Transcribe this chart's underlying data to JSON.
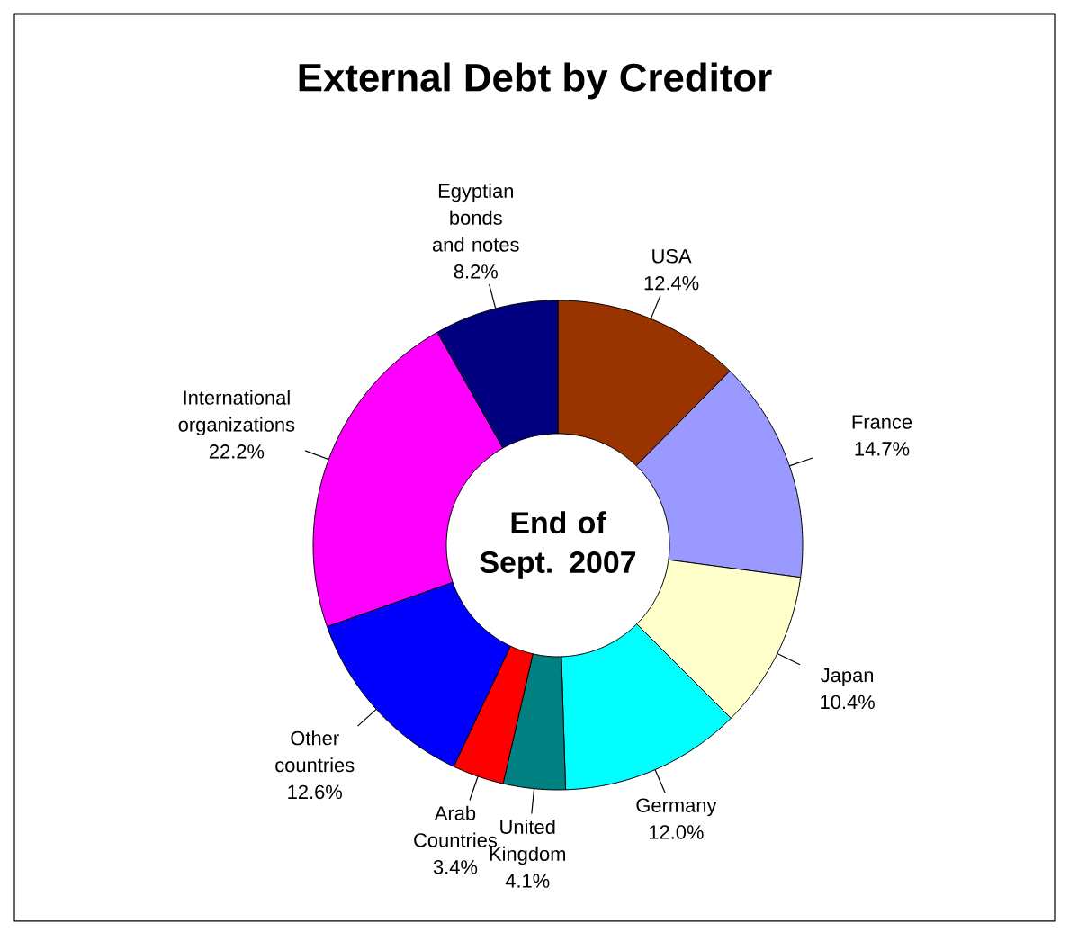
{
  "chart_data": {
    "type": "donut",
    "title": "External Debt by Creditor",
    "categories": [
      "USA",
      "France",
      "Japan",
      "Germany",
      "United Kingdom",
      "Arab Countries",
      "Other countries",
      "International organizations",
      "Egyptian bonds and notes"
    ],
    "values": [
      12.4,
      14.7,
      10.4,
      12.0,
      4.1,
      3.4,
      12.6,
      22.2,
      8.2
    ],
    "value_labels": [
      "12.4%",
      "14.7%",
      "10.4%",
      "12.0%",
      "4.1%",
      "3.4%",
      "12.6%",
      "22.2%",
      "8.2%"
    ],
    "colors": [
      "#993300",
      "#9999ff",
      "#ffffcc",
      "#00ffff",
      "#008080",
      "#ff0000",
      "#0000ff",
      "#ff00ff",
      "#000080"
    ],
    "annotations": [
      "End of Sept. 2007"
    ],
    "legend": false
  }
}
